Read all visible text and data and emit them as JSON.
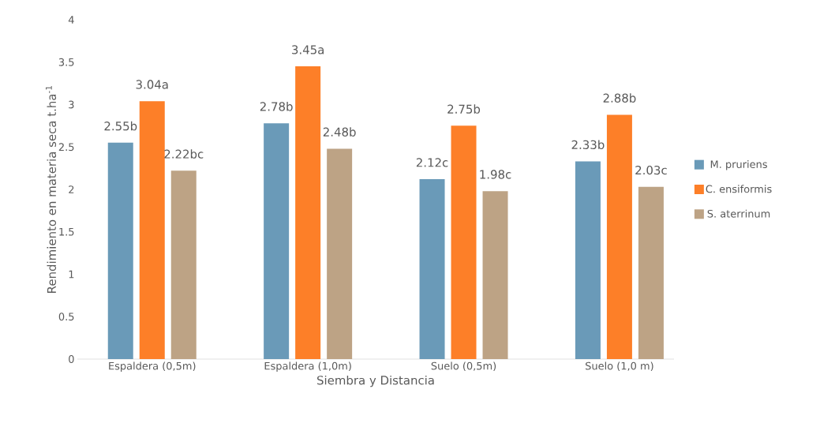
{
  "chart_data": {
    "type": "bar",
    "xlabel": "Siembra y Distancia",
    "ylabel": "Rendimiento en materia seca t.ha$^{-1}$",
    "categories": [
      "Espaldera (0,5m)",
      "Espaldera (1,0m)",
      "Suelo (0,5m)",
      "Suelo (1,0 m)"
    ],
    "series": [
      {
        "name": "M. pruriens",
        "color": "#6a9ab8",
        "values": [
          2.55,
          2.78,
          2.12,
          2.33
        ],
        "value_labels": [
          "2.55b",
          "2.78b",
          "2.12c",
          "2.33b"
        ]
      },
      {
        "name": "C. ensiformis",
        "color": "#fd7f28",
        "values": [
          3.04,
          3.45,
          2.75,
          2.88
        ],
        "value_labels": [
          "3.04a",
          "3.45a",
          "2.75b",
          "2.88b"
        ]
      },
      {
        "name": "S. aterrinum",
        "color": "#bda385",
        "values": [
          2.22,
          2.48,
          1.98,
          2.03
        ],
        "value_labels": [
          "2.22bc",
          "2.48b",
          "1.98c",
          "2.03c"
        ]
      }
    ],
    "ylim": [
      0,
      4
    ],
    "yticks": [
      0,
      0.5,
      1,
      1.5,
      2,
      2.5,
      3,
      3.5,
      4
    ],
    "legend": "right"
  }
}
